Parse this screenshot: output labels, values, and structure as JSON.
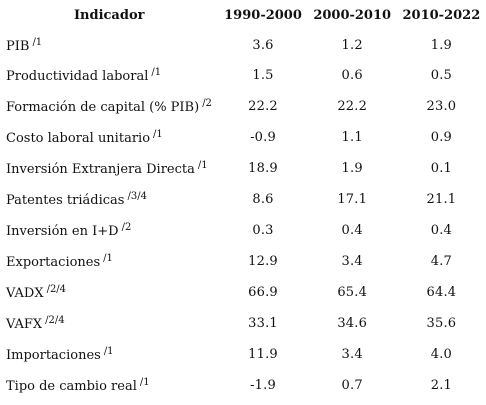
{
  "table": {
    "headers": {
      "indicator": "Indicador",
      "periods": [
        "1990-2000",
        "2000-2010",
        "2010-2022"
      ]
    },
    "rows": [
      {
        "label": "PIB",
        "note": "/1",
        "values": [
          "3.6",
          "1.2",
          "1.9"
        ]
      },
      {
        "label": "Productividad laboral",
        "note": "/1",
        "values": [
          "1.5",
          "0.6",
          "0.5"
        ]
      },
      {
        "label": "Formación de capital (% PIB)",
        "note": "/2",
        "values": [
          "22.2",
          "22.2",
          "23.0"
        ]
      },
      {
        "label": "Costo laboral unitario",
        "note": "/1",
        "values": [
          "-0.9",
          "1.1",
          "0.9"
        ]
      },
      {
        "label": "Inversión Extranjera Directa",
        "note": "/1",
        "values": [
          "18.9",
          "1.9",
          "0.1"
        ]
      },
      {
        "label": "Patentes triádicas",
        "note": "/3/4",
        "values": [
          "8.6",
          "17.1",
          "21.1"
        ]
      },
      {
        "label": "Inversión en I+D",
        "note": "/2",
        "values": [
          "0.3",
          "0.4",
          "0.4"
        ]
      },
      {
        "label": "Exportaciones",
        "note": "/1",
        "values": [
          "12.9",
          "3.4",
          "4.7"
        ]
      },
      {
        "label": "VADX",
        "note": "/2/4",
        "values": [
          "66.9",
          "65.4",
          "64.4"
        ]
      },
      {
        "label": "VAFX",
        "note": "/2/4",
        "values": [
          "33.1",
          "34.6",
          "35.6"
        ]
      },
      {
        "label": "Importaciones",
        "note": "/1",
        "values": [
          "11.9",
          "3.4",
          "4.0"
        ]
      },
      {
        "label": "Tipo de cambio real",
        "note": "/1",
        "values": [
          "-1.9",
          "0.7",
          "2.1"
        ]
      }
    ]
  }
}
